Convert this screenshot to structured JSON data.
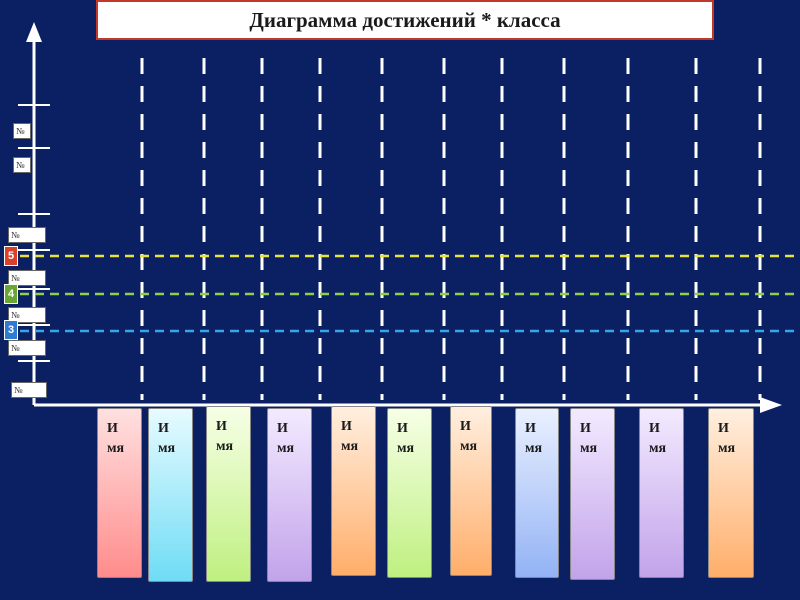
{
  "title": "Диаграмма достижений * класса",
  "tick_label": "№",
  "grades": [
    {
      "label": "5",
      "color": "#d9412b",
      "line_color": "#e8e23a"
    },
    {
      "label": "4",
      "color": "#6aa632",
      "line_color": "#8ed04a"
    },
    {
      "label": "3",
      "color": "#2f7bd1",
      "line_color": "#34a7e6"
    }
  ],
  "students": [
    {
      "name": "И\nмя",
      "top": "#ffe0e0",
      "bottom": "#ff8c8c"
    },
    {
      "name": "И\nмя",
      "top": "#e6fbff",
      "bottom": "#6fdcf5"
    },
    {
      "name": "И\nмя",
      "top": "#f6ffe6",
      "bottom": "#bff080"
    },
    {
      "name": "И\nмя",
      "top": "#f3eaff",
      "bottom": "#c2a3ea"
    },
    {
      "name": "И\nмя",
      "top": "#ffefe0",
      "bottom": "#ffae6a"
    },
    {
      "name": "И\nмя",
      "top": "#f6ffe6",
      "bottom": "#bff080"
    },
    {
      "name": "И\nмя",
      "top": "#ffefe0",
      "bottom": "#ffae6a"
    },
    {
      "name": "И\nмя",
      "top": "#eaf0ff",
      "bottom": "#93b3f5"
    },
    {
      "name": "И\nмя",
      "top": "#f3eaff",
      "bottom": "#c2a3ea"
    },
    {
      "name": "И\nмя",
      "top": "#f3eaff",
      "bottom": "#c2a3ea"
    },
    {
      "name": "И\nмя",
      "top": "#ffefe0",
      "bottom": "#ffae6a"
    }
  ]
}
